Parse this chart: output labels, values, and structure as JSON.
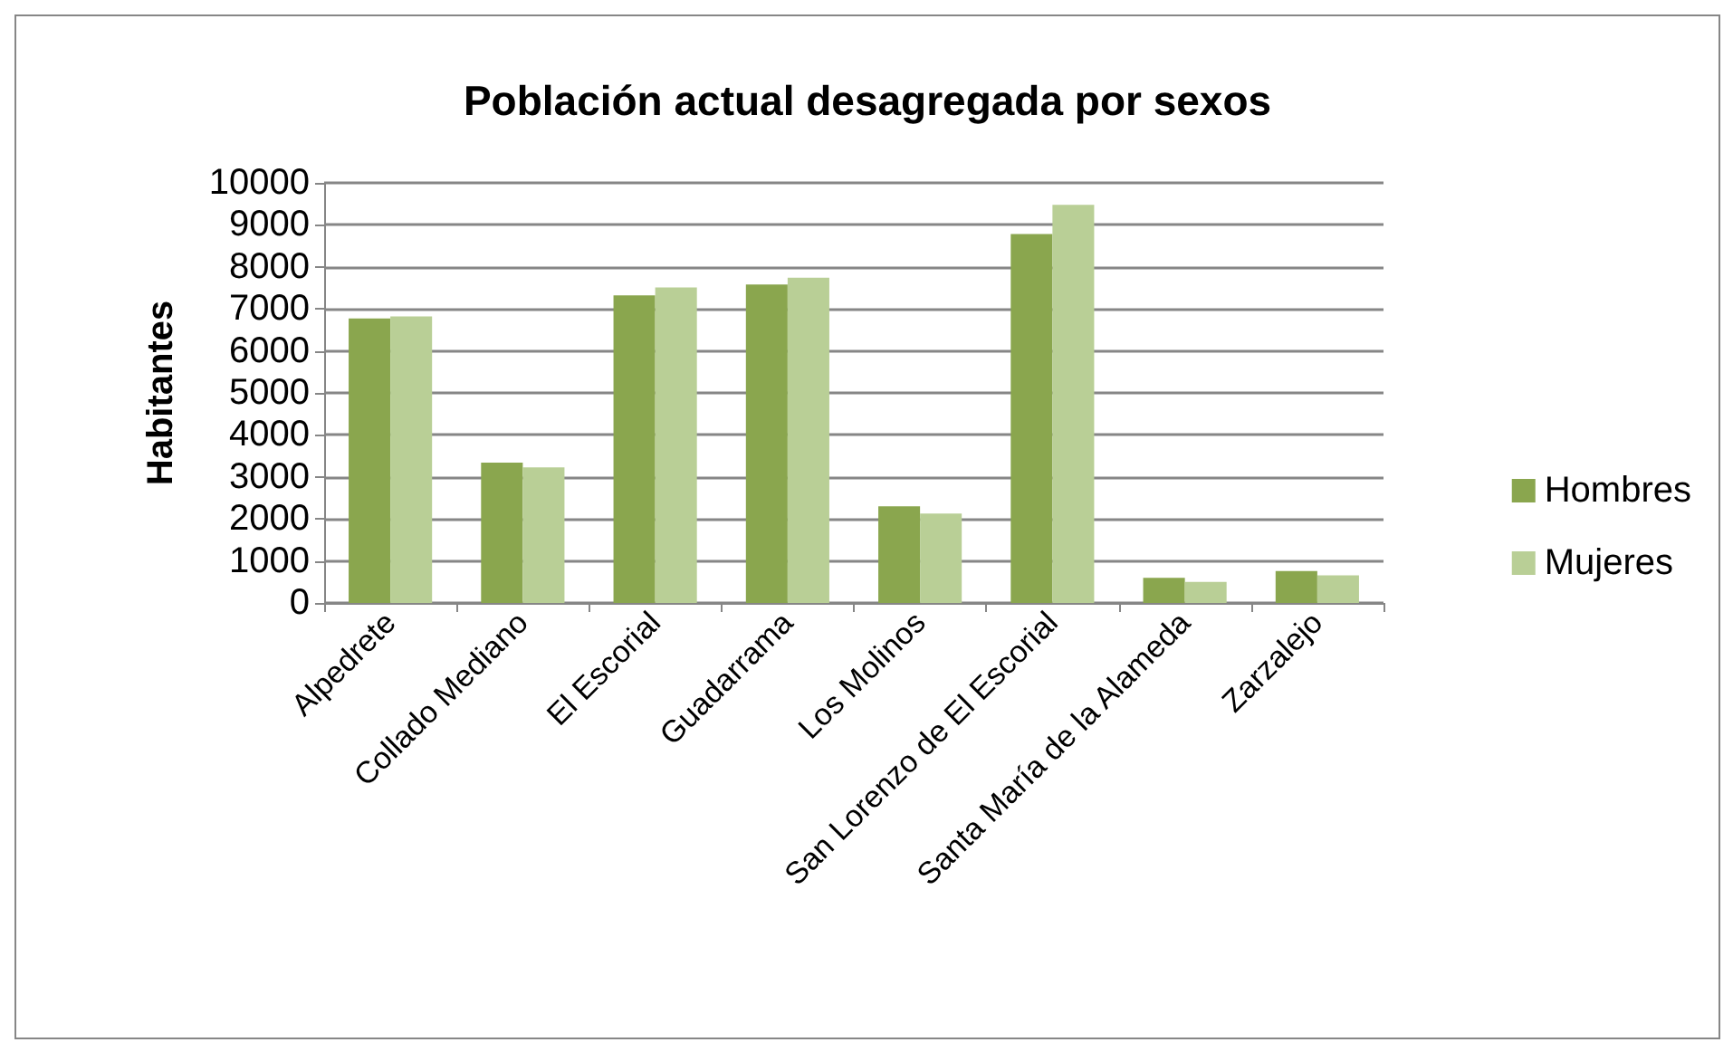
{
  "chart_data": {
    "type": "bar",
    "title": "Población actual desagregada por sexos",
    "ylabel": "Habitantes",
    "categories": [
      "Alpedrete",
      "Collado Mediano",
      "El Escorial",
      "Guadarrama",
      "Los Molinos",
      "San Lorenzo de El Escorial",
      "Santa María de la Alameda",
      "Zarzalejo"
    ],
    "series": [
      {
        "name": "Hombres",
        "color": "#8aa64e",
        "values": [
          6770,
          3340,
          7320,
          7580,
          2300,
          8780,
          600,
          760
        ]
      },
      {
        "name": "Mujeres",
        "color": "#b9cf96",
        "values": [
          6820,
          3230,
          7510,
          7740,
          2130,
          9480,
          500,
          660
        ]
      }
    ],
    "ylim": [
      0,
      10000
    ],
    "yticks": [
      0,
      1000,
      2000,
      3000,
      4000,
      5000,
      6000,
      7000,
      8000,
      9000,
      10000
    ],
    "grid": "y",
    "legend": "right"
  }
}
